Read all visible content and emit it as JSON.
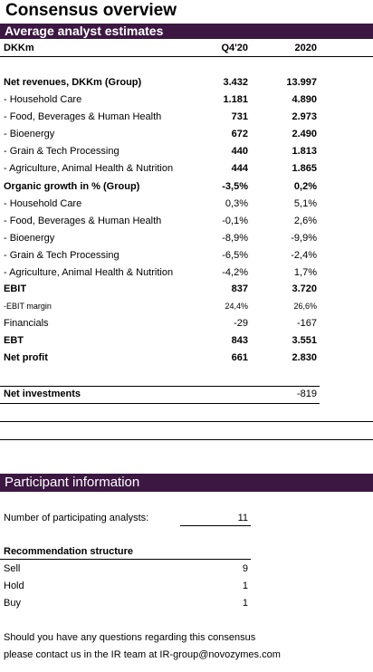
{
  "title": "Consensus overview",
  "section1": "Average analyst estimates",
  "header": {
    "unit": "DKKm",
    "col1": "Q4'20",
    "col2": "2020"
  },
  "rows": [
    {
      "label": "Net revenues, DKKm (Group)",
      "q4": "3.432",
      "y": "13.997"
    },
    {
      "label": "- Household Care",
      "q4": "1.181",
      "y": "4.890"
    },
    {
      "label": "- Food, Beverages & Human Health",
      "q4": "731",
      "y": "2.973"
    },
    {
      "label": "- Bioenergy",
      "q4": "672",
      "y": "2.490"
    },
    {
      "label": "- Grain & Tech Processing",
      "q4": "440",
      "y": "1.813"
    },
    {
      "label": "- Agriculture, Animal Health & Nutrition",
      "q4": "444",
      "y": "1.865"
    },
    {
      "label": "Organic growth in % (Group)",
      "q4": "-3,5%",
      "y": "0,2%"
    },
    {
      "label": "- Household Care",
      "q4": "0,3%",
      "y": "5,1%"
    },
    {
      "label": "- Food, Beverages & Human Health",
      "q4": "-0,1%",
      "y": "2,6%"
    },
    {
      "label": "- Bioenergy",
      "q4": "-8,9%",
      "y": "-9,9%"
    },
    {
      "label": "- Grain & Tech Processing",
      "q4": "-6,5%",
      "y": "-2,4%"
    },
    {
      "label": "- Agriculture, Animal Health & Nutrition",
      "q4": "-4,2%",
      "y": "1,7%"
    },
    {
      "label": "EBIT",
      "q4": "837",
      "y": "3.720"
    },
    {
      "label": "-EBIT margin",
      "q4": "24,4%",
      "y": "26,6%"
    },
    {
      "label": "Financials",
      "q4": "-29",
      "y": "-167"
    },
    {
      "label": "EBT",
      "q4": "843",
      "y": "3.551"
    },
    {
      "label": "Net profit",
      "q4": "661",
      "y": "2.830"
    }
  ],
  "net_investments": {
    "label": "Net investments",
    "y": "-819"
  },
  "section2": "Participant information",
  "participants": {
    "label": "Number of participating analysts:",
    "value": "11"
  },
  "recommendation": {
    "title": "Recommendation structure",
    "sell": {
      "label": "Sell",
      "value": "9"
    },
    "hold": {
      "label": "Hold",
      "value": "1"
    },
    "buy": {
      "label": "Buy",
      "value": "1"
    }
  },
  "contact": {
    "line1": "Should you have any questions regarding this consensus",
    "line2": "please contact us in the IR team at IR-group@novozymes.com"
  }
}
